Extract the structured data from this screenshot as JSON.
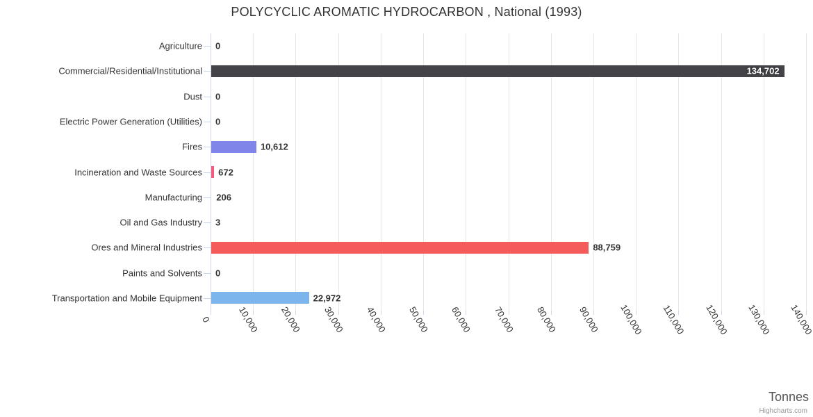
{
  "header": {
    "title": "POLYCYCLIC AROMATIC HYDROCARBON , National (1993)"
  },
  "credit": {
    "label": "Highcharts.com"
  },
  "chart_data": {
    "type": "bar",
    "orientation": "horizontal",
    "title": "POLYCYCLIC AROMATIC HYDROCARBON , National (1993)",
    "categories": [
      "Agriculture",
      "Commercial/Residential/Institutional",
      "Dust",
      "Electric Power Generation (Utilities)",
      "Fires",
      "Incineration and Waste Sources",
      "Manufacturing",
      "Oil and Gas Industry",
      "Ores and Mineral Industries",
      "Paints and Solvents",
      "Transportation and Mobile Equipment"
    ],
    "values": [
      0,
      134702,
      0,
      0,
      10612,
      672,
      206,
      3,
      88759,
      0,
      22972
    ],
    "value_labels": [
      "0",
      "134,702",
      "0",
      "0",
      "10,612",
      "672",
      "206",
      "3",
      "88,759",
      "0",
      "22,972"
    ],
    "bar_colors": [
      "#7cb5ec",
      "#434348",
      "#90ed7d",
      "#f7a35c",
      "#8085e9",
      "#f15c80",
      "#e4d354",
      "#2b908f",
      "#f45b5b",
      "#91e8e1",
      "#7cb5ec"
    ],
    "xlabel": "Tonnes",
    "ylabel": "",
    "xlim": [
      0,
      140000
    ],
    "x_ticks": [
      0,
      10000,
      20000,
      30000,
      40000,
      50000,
      60000,
      70000,
      80000,
      90000,
      100000,
      110000,
      120000,
      130000,
      140000
    ],
    "x_tick_labels": [
      "0",
      "10,000",
      "20,000",
      "30,000",
      "40,000",
      "50,000",
      "60,000",
      "70,000",
      "80,000",
      "90,000",
      "100,000",
      "110,000",
      "120,000",
      "130,000",
      "140,000"
    ],
    "grid": true,
    "legend": "none",
    "colors": {
      "axis_line": "#ccd6eb",
      "gridline": "#e6e6e6",
      "title": "#333333",
      "labels": "#333333",
      "axis_title": "#555555",
      "credit": "#999999"
    }
  }
}
